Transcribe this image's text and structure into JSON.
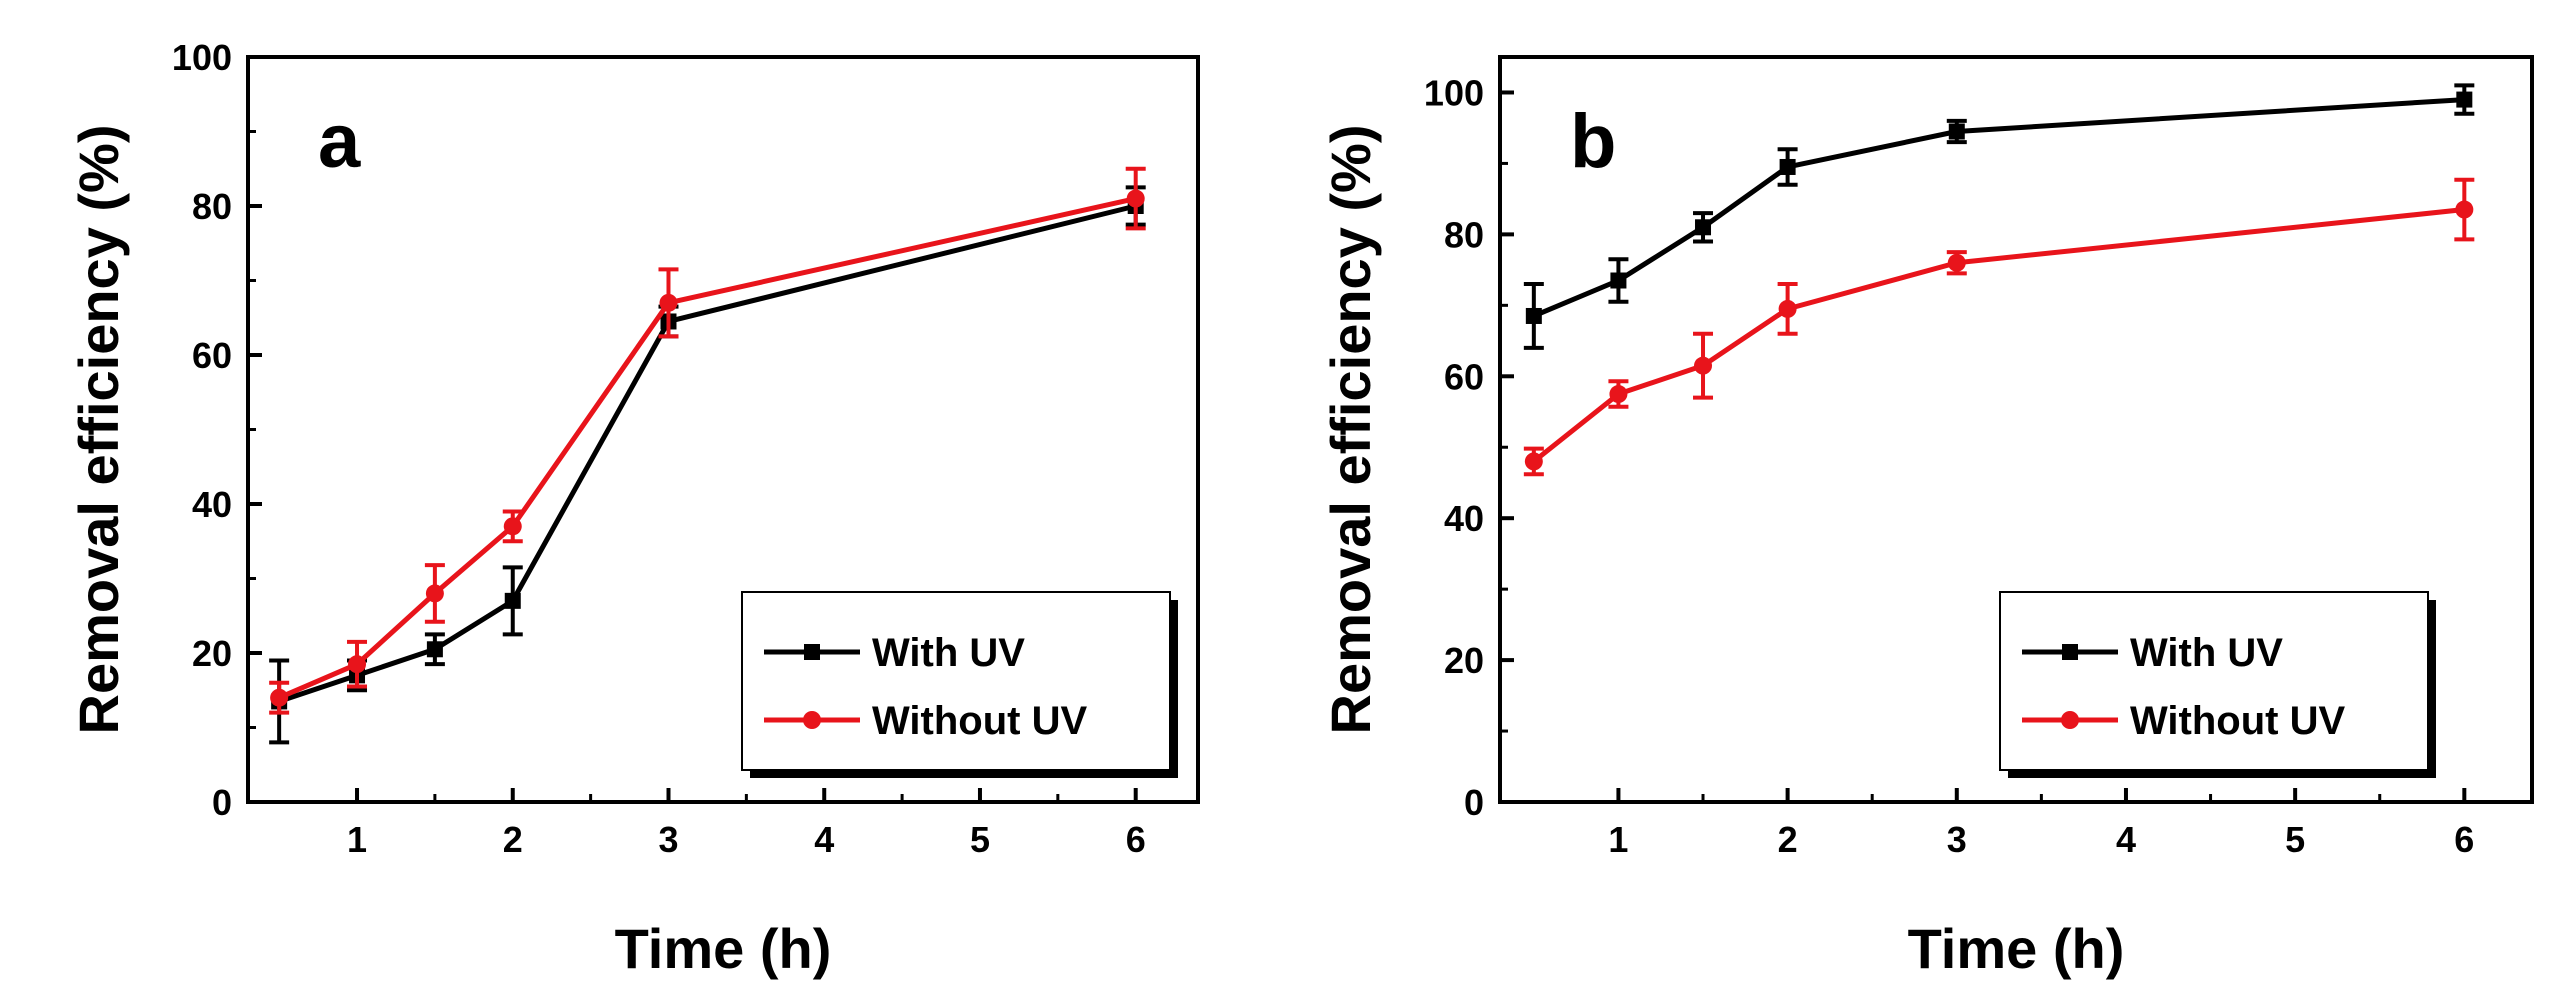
{
  "figure": {
    "panels": [
      "a",
      "b"
    ]
  },
  "chart_data": [
    {
      "type": "line",
      "panel_label": "a",
      "title": "",
      "xlabel": "Time (h)",
      "ylabel": "Removal efficiency (%)",
      "xlim": [
        0.3,
        6.4
      ],
      "ylim": [
        0,
        100
      ],
      "xticks": [
        "1",
        "2",
        "3",
        "4",
        "5",
        "6"
      ],
      "yticks": [
        "0",
        "20",
        "40",
        "60",
        "80",
        "100"
      ],
      "grid": false,
      "legend_position": "bottom-right",
      "x": [
        0.5,
        1,
        1.5,
        2,
        3,
        6
      ],
      "series": [
        {
          "name": "With UV",
          "color": "#000000",
          "marker": "square",
          "values": [
            13.5,
            17,
            20.5,
            27,
            64.5,
            80
          ],
          "errors": [
            5.5,
            2.0,
            2.0,
            4.5,
            2.0,
            2.5
          ]
        },
        {
          "name": "Without UV",
          "color": "#e8141b",
          "marker": "circle",
          "values": [
            14,
            18.5,
            28,
            37,
            67,
            81
          ],
          "errors": [
            2.0,
            3.0,
            3.8,
            2.0,
            4.5,
            4.0
          ]
        }
      ]
    },
    {
      "type": "line",
      "panel_label": "b",
      "title": "",
      "xlabel": "Time (h)",
      "ylabel": "Removal efficiency (%)",
      "xlim": [
        0.3,
        6.4
      ],
      "ylim": [
        0,
        105
      ],
      "xticks": [
        "1",
        "2",
        "3",
        "4",
        "5",
        "6"
      ],
      "yticks": [
        "0",
        "20",
        "40",
        "60",
        "80",
        "100"
      ],
      "grid": false,
      "legend_position": "bottom-right",
      "x": [
        0.5,
        1,
        1.5,
        2,
        3,
        6
      ],
      "series": [
        {
          "name": "With UV",
          "color": "#000000",
          "marker": "square",
          "values": [
            68.5,
            73.5,
            81,
            89.5,
            94.5,
            99
          ],
          "errors": [
            4.5,
            3.0,
            2.0,
            2.5,
            1.5,
            2.0
          ]
        },
        {
          "name": "Without UV",
          "color": "#e8141b",
          "marker": "circle",
          "values": [
            48,
            57.5,
            61.5,
            69.5,
            76,
            83.5
          ],
          "errors": [
            1.8,
            1.8,
            4.5,
            3.5,
            1.5,
            4.2
          ]
        }
      ]
    }
  ]
}
